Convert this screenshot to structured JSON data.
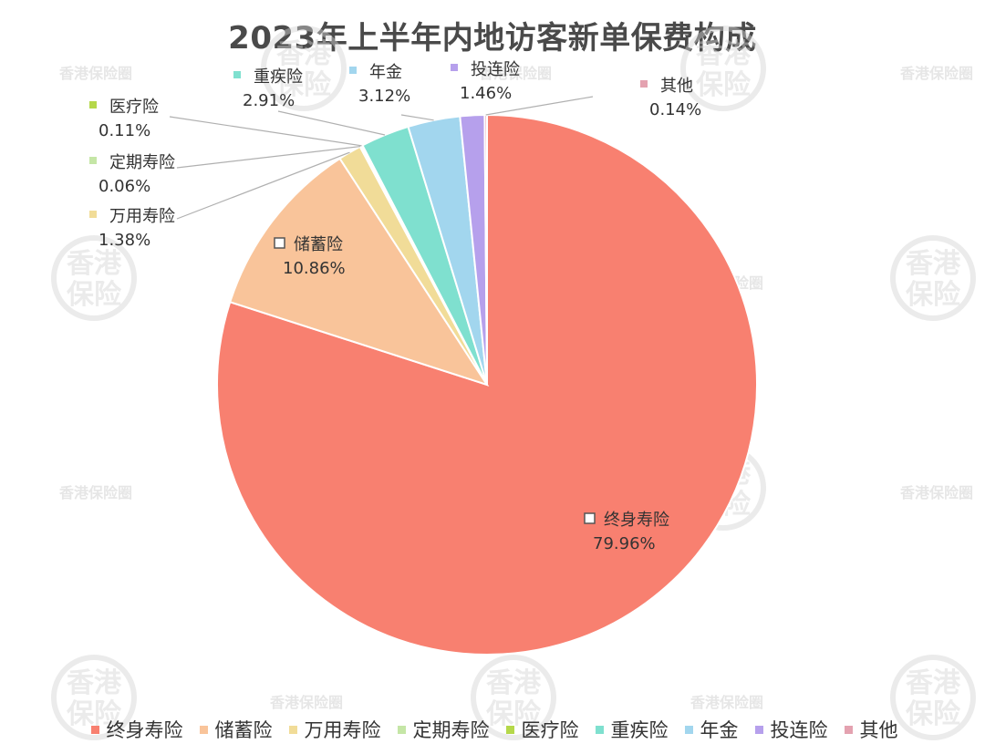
{
  "watermark": {
    "text": "香港保险圈",
    "seal_line1": "香港",
    "seal_line2": "保险"
  },
  "chart_data": {
    "type": "pie",
    "title": "2023年上半年内地访客新单保费构成",
    "unit": "%",
    "slices": [
      {
        "name": "终身寿险",
        "value": 79.96,
        "label": "79.96%",
        "color": "#f88070"
      },
      {
        "name": "储蓄险",
        "value": 10.86,
        "label": "10.86%",
        "color": "#f9c49a"
      },
      {
        "name": "万用寿险",
        "value": 1.38,
        "label": "1.38%",
        "color": "#f1dc98"
      },
      {
        "name": "定期寿险",
        "value": 0.06,
        "label": "0.06%",
        "color": "#c5e6a6"
      },
      {
        "name": "医疗险",
        "value": 0.11,
        "label": "0.11%",
        "color": "#b5d84a"
      },
      {
        "name": "重疾险",
        "value": 2.91,
        "label": "2.91%",
        "color": "#7fe0cf"
      },
      {
        "name": "年金",
        "value": 3.12,
        "label": "3.12%",
        "color": "#a2d6ee"
      },
      {
        "name": "投连险",
        "value": 1.46,
        "label": "1.46%",
        "color": "#b6a0ec"
      },
      {
        "name": "其他",
        "value": 0.14,
        "label": "0.14%",
        "color": "#e4a2b0"
      }
    ],
    "legend_position": "bottom"
  }
}
